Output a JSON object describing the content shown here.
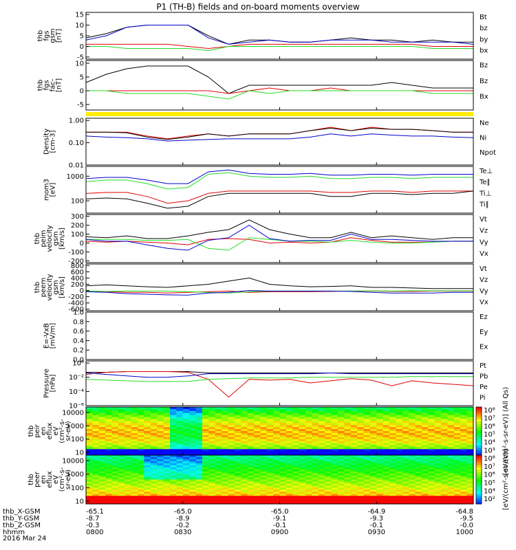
{
  "title": "P1 (TH-B) fields and on-board moments overview",
  "colors": {
    "black": "#000000",
    "red": "#e00000",
    "green": "#22dd22",
    "blue": "#0000cc",
    "yellow": "#ffee00"
  },
  "chart_data": [
    {
      "type": "line",
      "panel": "fgs",
      "ylabel": [
        "thb",
        "fgs",
        "gsm",
        "[nT]"
      ],
      "yticks": [
        "15",
        "10",
        "5",
        "0",
        "-5"
      ],
      "legend": [
        {
          "text": "Bt",
          "color": "#000000"
        },
        {
          "text": "bz",
          "color": "#e00000"
        },
        {
          "text": "by",
          "color": "#22dd22"
        },
        {
          "text": "bx",
          "color": "#0000cc"
        }
      ],
      "series": [
        {
          "color": "#000000",
          "values": [
            4,
            6,
            9,
            10,
            10,
            10,
            5,
            1,
            3,
            3,
            2,
            2,
            3,
            4,
            3,
            3,
            2,
            3,
            2,
            2
          ]
        },
        {
          "color": "#0000cc",
          "values": [
            3,
            5,
            9,
            10,
            10,
            10,
            4,
            1,
            2,
            3,
            2,
            2,
            3,
            3,
            3,
            2,
            2,
            2,
            2,
            1
          ]
        },
        {
          "color": "#e00000",
          "values": [
            1,
            1,
            1,
            1,
            1,
            0,
            -1,
            0,
            1,
            1,
            1,
            1,
            1,
            1,
            1,
            1,
            1,
            0,
            0,
            0
          ]
        },
        {
          "color": "#22dd22",
          "values": [
            0,
            0,
            -1,
            -1,
            -1,
            -1,
            -2,
            0,
            0,
            0,
            0,
            0,
            0,
            0,
            0,
            0,
            0,
            -1,
            -1,
            -1
          ]
        }
      ]
    },
    {
      "type": "line",
      "panel": "fgs_fac",
      "ylabel": [
        "thb",
        "fgs",
        "fac-",
        "[nT]"
      ],
      "yticks": [
        "10",
        "5",
        "0",
        "-5"
      ],
      "legend": [
        {
          "text": "Bz",
          "color": "#22dd22"
        },
        {
          "text": "Bz",
          "color": "#e00000"
        },
        {
          "text": "Bx",
          "color": "#000000"
        }
      ],
      "series": [
        {
          "color": "#000000",
          "values": [
            3,
            6,
            8,
            9,
            9,
            9,
            5,
            -1,
            2,
            2,
            2,
            2,
            2,
            2,
            2,
            3,
            2,
            1,
            1,
            1
          ]
        },
        {
          "color": "#e00000",
          "values": [
            0,
            0,
            0,
            0,
            0,
            0,
            0,
            -1,
            0,
            1,
            0,
            0,
            1,
            0,
            0,
            0,
            0,
            0,
            0,
            0
          ]
        },
        {
          "color": "#22dd22",
          "values": [
            0,
            0,
            -1,
            -1,
            -1,
            -1,
            -2,
            -3,
            0,
            -1,
            0,
            0,
            0,
            0,
            0,
            0,
            0,
            -1,
            -1,
            -1
          ]
        }
      ]
    },
    {
      "type": "line",
      "panel": "density",
      "ylabel": [
        "Density",
        "[cm-3]"
      ],
      "yticks": [
        "1.00",
        "0.10",
        "0.01"
      ],
      "legend": [
        {
          "text": "Ne",
          "color": "#e00000"
        },
        {
          "text": "Ni",
          "color": "#000000"
        },
        {
          "text": "Npot",
          "color": "#0000cc"
        }
      ],
      "series": [
        {
          "color": "#e00000",
          "values": [
            0.3,
            0.3,
            0.3,
            0.2,
            0.15,
            0.2,
            0.25,
            0.2,
            0.25,
            0.25,
            0.25,
            0.35,
            0.5,
            0.35,
            0.5,
            0.4,
            0.4,
            0.35,
            0.3,
            0.3
          ]
        },
        {
          "color": "#000000",
          "values": [
            0.3,
            0.3,
            0.28,
            0.18,
            0.14,
            0.18,
            0.25,
            0.2,
            0.25,
            0.25,
            0.25,
            0.35,
            0.45,
            0.35,
            0.45,
            0.4,
            0.4,
            0.35,
            0.3,
            0.3
          ]
        },
        {
          "color": "#0000cc",
          "values": [
            0.2,
            0.18,
            0.17,
            0.15,
            0.12,
            0.13,
            0.14,
            0.15,
            0.15,
            0.15,
            0.15,
            0.18,
            0.25,
            0.2,
            0.25,
            0.22,
            0.2,
            0.2,
            0.18,
            0.17
          ]
        }
      ]
    },
    {
      "type": "line",
      "panel": "temperature",
      "ylabel": [
        "mom3",
        "[eV]"
      ],
      "yticks": [
        "1000",
        "100"
      ],
      "legend": [
        {
          "text": "Te⊥",
          "color": "#e00000"
        },
        {
          "text": "Te∥",
          "color": "#000000"
        },
        {
          "text": "Ti⊥",
          "color": "#22dd22"
        },
        {
          "text": "Ti∥",
          "color": "#22dd22"
        }
      ],
      "series": [
        {
          "color": "#0000cc",
          "values": [
            800,
            900,
            900,
            700,
            500,
            500,
            1500,
            1800,
            1300,
            1200,
            1200,
            1300,
            1100,
            1100,
            1200,
            1200,
            1100,
            1200,
            1200,
            1200
          ]
        },
        {
          "color": "#22dd22",
          "values": [
            600,
            700,
            700,
            500,
            300,
            350,
            1200,
            1400,
            1000,
            900,
            900,
            1000,
            800,
            800,
            900,
            900,
            800,
            900,
            900,
            900
          ]
        },
        {
          "color": "#e00000",
          "values": [
            200,
            220,
            220,
            150,
            80,
            100,
            200,
            250,
            250,
            250,
            250,
            250,
            220,
            220,
            250,
            250,
            220,
            250,
            250,
            250
          ]
        },
        {
          "color": "#000000",
          "values": [
            120,
            130,
            120,
            80,
            50,
            60,
            150,
            200,
            200,
            200,
            200,
            200,
            150,
            150,
            200,
            200,
            180,
            200,
            200,
            250
          ]
        }
      ]
    },
    {
      "type": "line",
      "panel": "ion_velocity",
      "ylabel": [
        "thb",
        "peim",
        "velocity",
        "gsm",
        "[km/s]"
      ],
      "yticks": [
        "300",
        "200",
        "100",
        "0",
        "-100",
        "-200"
      ],
      "legend": [
        {
          "text": "Vt",
          "color": "#000000"
        },
        {
          "text": "Vz",
          "color": "#e00000"
        },
        {
          "text": "Vy",
          "color": "#22dd22"
        },
        {
          "text": "Vx",
          "color": "#0000cc"
        }
      ],
      "series": [
        {
          "color": "#000000",
          "values": [
            70,
            60,
            80,
            50,
            50,
            80,
            120,
            150,
            260,
            150,
            100,
            60,
            60,
            120,
            60,
            80,
            60,
            40,
            60,
            60
          ]
        },
        {
          "color": "#e00000",
          "values": [
            20,
            10,
            20,
            10,
            0,
            -20,
            40,
            50,
            40,
            0,
            10,
            0,
            10,
            60,
            30,
            10,
            10,
            10,
            20,
            20
          ]
        },
        {
          "color": "#22dd22",
          "values": [
            40,
            40,
            40,
            30,
            30,
            40,
            -60,
            -80,
            60,
            40,
            20,
            20,
            10,
            30,
            10,
            0,
            0,
            10,
            20,
            20
          ]
        },
        {
          "color": "#0000cc",
          "values": [
            40,
            20,
            20,
            -20,
            -60,
            -80,
            30,
            60,
            200,
            50,
            20,
            30,
            30,
            100,
            40,
            40,
            30,
            20,
            20,
            20
          ]
        }
      ]
    },
    {
      "type": "line",
      "panel": "electron_velocity",
      "ylabel": [
        "thb",
        "peem",
        "velocity",
        "gsm",
        "[km/s]"
      ],
      "yticks": [
        "800",
        "600",
        "400",
        "200",
        "0",
        "-200",
        "-400",
        "-600"
      ],
      "legend": [
        {
          "text": "Vt",
          "color": "#000000"
        },
        {
          "text": "Vz",
          "color": "#e00000"
        },
        {
          "text": "Vy",
          "color": "#22dd22"
        },
        {
          "text": "Vx",
          "color": "#0000cc"
        }
      ],
      "series": [
        {
          "color": "#000000",
          "values": [
            150,
            180,
            150,
            120,
            100,
            150,
            200,
            300,
            400,
            200,
            150,
            120,
            130,
            150,
            100,
            100,
            80,
            60,
            60,
            60
          ]
        },
        {
          "color": "#e00000",
          "values": [
            -20,
            -40,
            -60,
            -60,
            -80,
            -60,
            -40,
            -20,
            -60,
            -40,
            -40,
            -40,
            -30,
            -20,
            -20,
            -30,
            -30,
            -20,
            -20,
            -20
          ]
        },
        {
          "color": "#22dd22",
          "values": [
            -20,
            -30,
            -20,
            -20,
            -20,
            -40,
            -60,
            -80,
            -40,
            -20,
            -20,
            -20,
            -20,
            -20,
            -10,
            -20,
            -10,
            -10,
            -10,
            -10
          ]
        },
        {
          "color": "#0000cc",
          "values": [
            -40,
            -60,
            -100,
            -120,
            -140,
            -150,
            -80,
            -60,
            0,
            -20,
            -20,
            -20,
            -20,
            -30,
            -60,
            -80,
            -80,
            -80,
            -60,
            -60
          ]
        }
      ]
    },
    {
      "type": "line",
      "panel": "efield",
      "ylabel": [
        "E=-VxB",
        "[mV/m]"
      ],
      "yticks": [
        "1.0",
        "0.8",
        "0.6",
        "0.4",
        "0.2",
        "0.0"
      ],
      "legend": [
        {
          "text": "Ez",
          "color": "#e00000"
        },
        {
          "text": "Ey",
          "color": "#22dd22"
        },
        {
          "text": "Ex",
          "color": "#0000cc"
        }
      ],
      "series": []
    },
    {
      "type": "line",
      "panel": "pressure",
      "ylabel": [
        "Pressure",
        "[nPa]"
      ],
      "yticks": [
        "10⁰",
        "10⁻²",
        "10⁻⁴",
        "10⁻⁶"
      ],
      "legend": [
        {
          "text": "Pt",
          "color": "#000000"
        },
        {
          "text": "Pb",
          "color": "#e00000"
        },
        {
          "text": "Pe",
          "color": "#22dd22"
        },
        {
          "text": "Pi",
          "color": "#0000cc"
        }
      ],
      "series": [
        {
          "color": "#000000",
          "values": [
            -1.3,
            -1.3,
            -1.2,
            -1.2,
            -1.2,
            -1.2,
            -1.4,
            -1.4,
            -1.4,
            -1.4,
            -1.4,
            -1.4,
            -1.4,
            -1.4,
            -1.4,
            -1.4,
            -1.4,
            -1.4,
            -1.4,
            -1.4
          ]
        },
        {
          "color": "#e00000",
          "values": [
            -1.6,
            -1.3,
            -1.2,
            -1.2,
            -1.2,
            -1.3,
            -2.3,
            -4.8,
            -2.3,
            -2.4,
            -2.3,
            -2.8,
            -2.5,
            -2.2,
            -2.4,
            -3.2,
            -2.5,
            -2.8,
            -3.0,
            -3.2
          ]
        },
        {
          "color": "#22dd22",
          "values": [
            -2.3,
            -2.4,
            -2.5,
            -2.6,
            -2.6,
            -2.6,
            -2.3,
            -2.2,
            -2.1,
            -2.1,
            -2.1,
            -2.0,
            -2.0,
            -2.0,
            -2.0,
            -2.0,
            -1.9,
            -1.9,
            -1.9,
            -1.9
          ]
        },
        {
          "color": "#0000cc",
          "values": [
            -1.4,
            -1.6,
            -1.8,
            -2.0,
            -2.0,
            -1.8,
            -1.5,
            -1.5,
            -1.5,
            -1.5,
            -1.5,
            -1.5,
            -1.4,
            -1.5,
            -1.5,
            -1.5,
            -1.5,
            -1.5,
            -1.5,
            -1.5
          ]
        }
      ]
    },
    {
      "type": "heatmap",
      "panel": "ion_spectrogram",
      "ylabel": [
        "thb",
        "peir",
        "en",
        "eflux",
        "eV",
        "(cm²-s-",
        "sr-eV)"
      ],
      "yticks": [
        "10000",
        "1000",
        "100",
        "10"
      ],
      "colorbar": {
        "ticks": [
          "10⁸",
          "10⁷",
          "10⁶",
          "10⁵",
          "10⁴",
          "10³"
        ],
        "label": "[eV/(cm²-s-sr-eV)] (All Qs)"
      }
    },
    {
      "type": "heatmap",
      "panel": "electron_spectrogram",
      "ylabel": [
        "thb",
        "peer",
        "en",
        "eflux",
        "eV",
        "(cm²-s-",
        "sr-eV)"
      ],
      "yticks": [
        "10000",
        "1000",
        "100",
        "10"
      ],
      "colorbar": {
        "ticks": [
          "10⁸",
          "10⁷",
          "10⁶",
          "10⁵",
          "10⁴",
          "10²"
        ],
        "label": "[eV/(cm²-s-sr-eV)]"
      }
    }
  ],
  "ephemeris": {
    "row_labels": [
      "thb_X-GSM",
      "thb_Y-GSM",
      "thb_Z-GSM",
      "hhmm",
      "2016 Mar 24"
    ],
    "columns": [
      {
        "x": "-65.1",
        "y": "-8.7",
        "z": "-0.3",
        "t": "0800"
      },
      {
        "x": "-65.0",
        "y": "-8.9",
        "z": "-0.2",
        "t": "0830"
      },
      {
        "x": "-65.0",
        "y": "-9.1",
        "z": "-0.1",
        "t": "0900"
      },
      {
        "x": "-64.9",
        "y": "-9.3",
        "z": "-0.1",
        "t": "0930"
      },
      {
        "x": "-64.8",
        "y": "-9.5",
        "z": "-0.0",
        "t": "1000"
      }
    ]
  }
}
